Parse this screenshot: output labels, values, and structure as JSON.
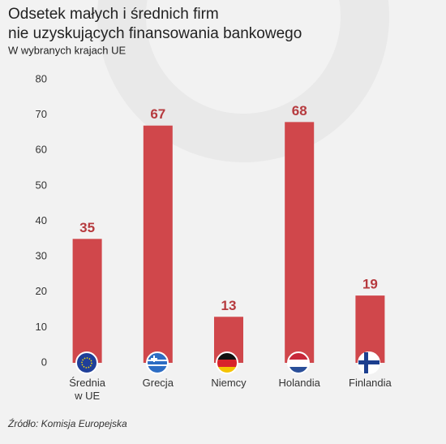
{
  "chart_data": {
    "type": "bar",
    "title": [
      "Odsetek małych i średnich firm",
      "nie uzyskujących finansowania bankowego"
    ],
    "subtitle": "W wybranych krajach UE",
    "categories": [
      "Średnia w UE",
      "Grecja",
      "Niemcy",
      "Holandia",
      "Finlandia"
    ],
    "values": [
      35,
      67,
      13,
      68,
      19
    ],
    "color": "#d0474b",
    "ylim": [
      0,
      80
    ],
    "yticks": [
      0,
      10,
      20,
      30,
      40,
      50,
      60,
      70,
      80
    ],
    "grid": false,
    "source": "Źródło: Komisja Europejska"
  }
}
